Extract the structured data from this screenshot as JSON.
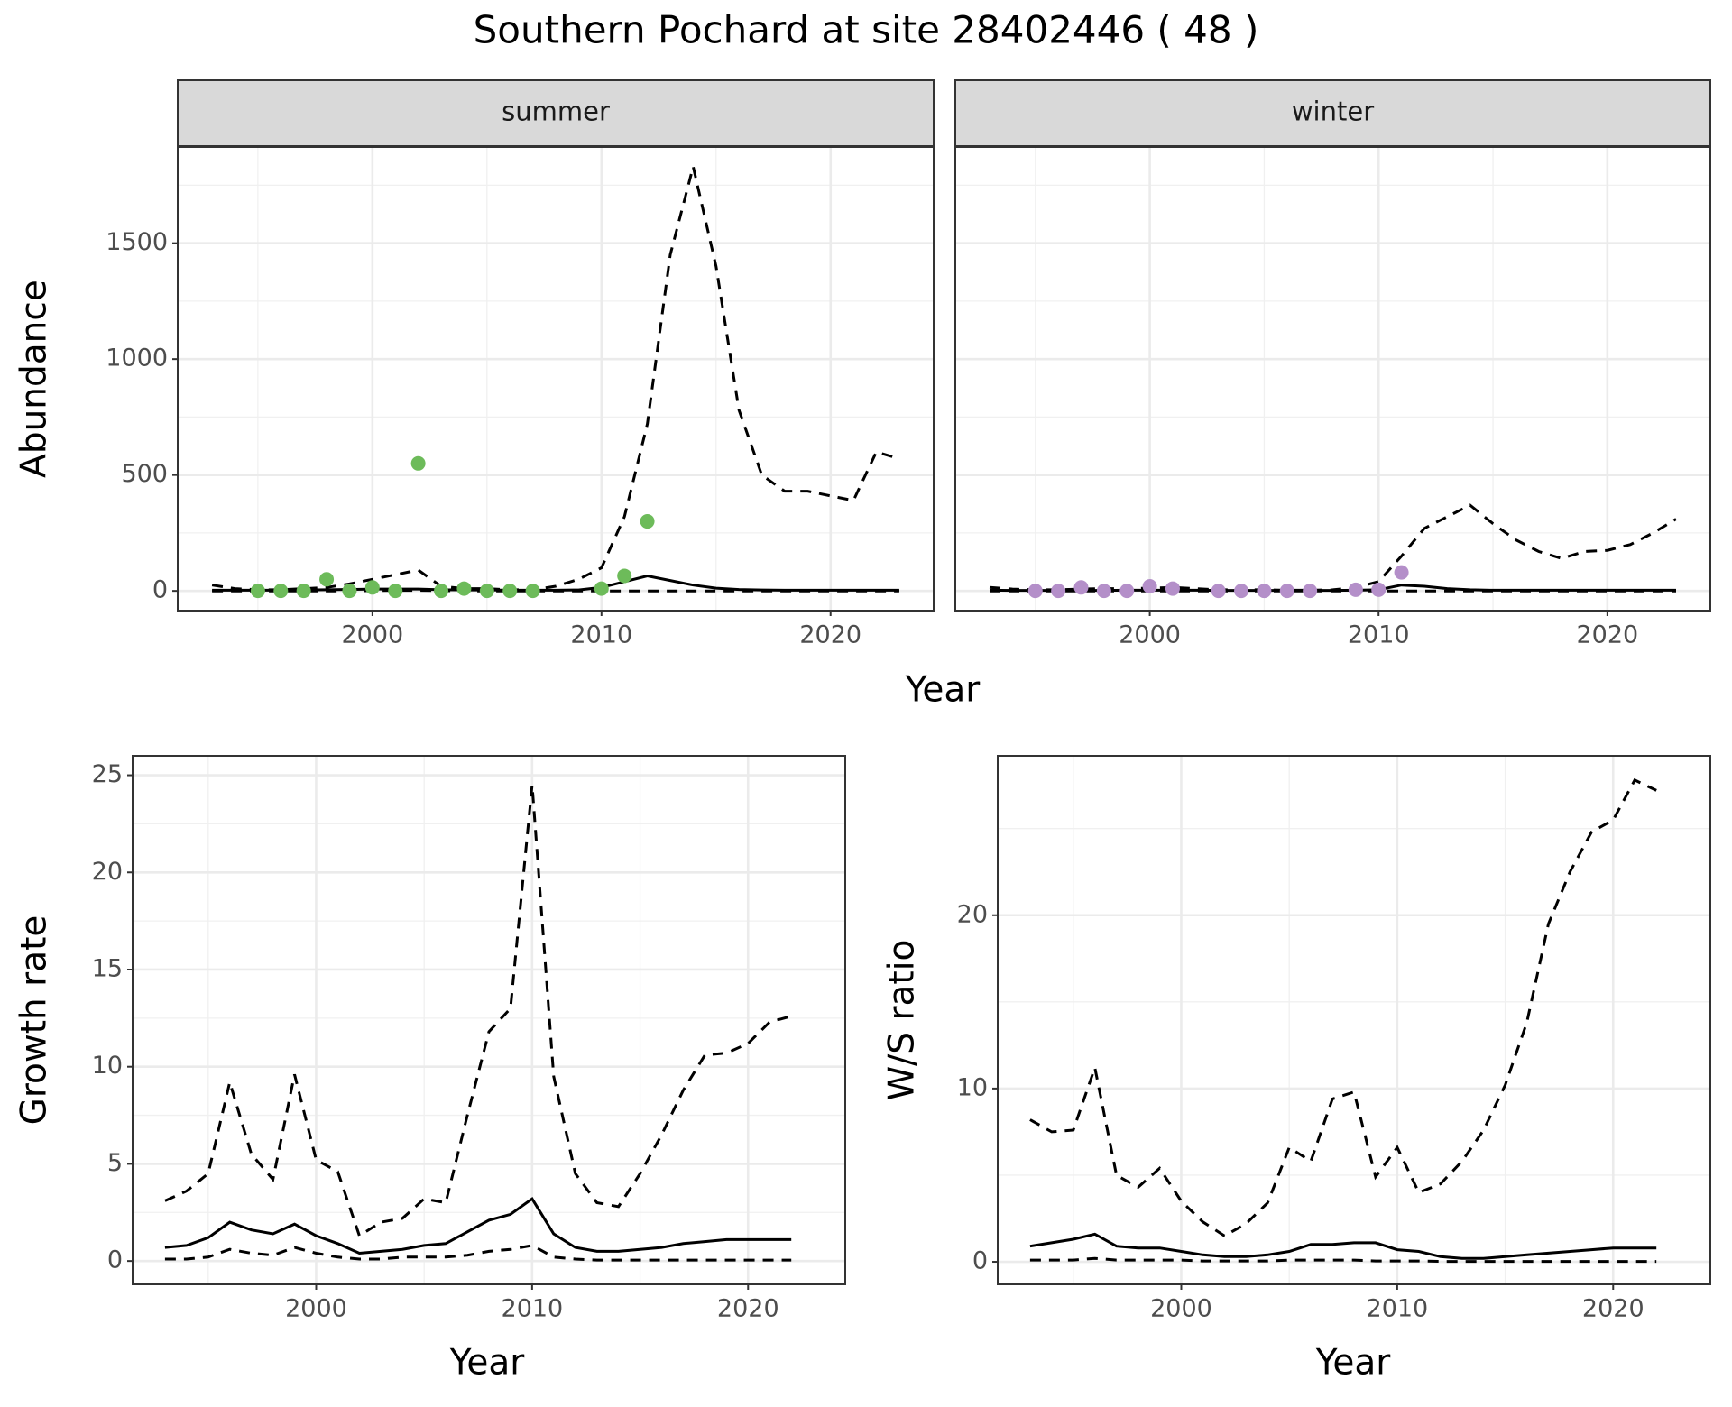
{
  "title": "Southern Pochard at site 28402446 ( 48 )",
  "chart_data": [
    {
      "type": "line",
      "strip": "summer",
      "ylabel": "Abundance",
      "xlabel": "Year",
      "x": [
        1993,
        1994,
        1995,
        1996,
        1997,
        1998,
        1999,
        2000,
        2001,
        2002,
        2003,
        2004,
        2005,
        2006,
        2007,
        2008,
        2009,
        2010,
        2011,
        2012,
        2013,
        2014,
        2015,
        2016,
        2017,
        2018,
        2019,
        2020,
        2021,
        2022,
        2023
      ],
      "xlim": [
        1991.5,
        2024.5
      ],
      "xticks": [
        2000,
        2010,
        2020
      ],
      "ylim": [
        -85,
        1915
      ],
      "yticks": [
        0,
        500,
        1000,
        1500
      ],
      "show_ytick_labels": true,
      "grid": true,
      "series": [
        {
          "color": "#000000",
          "dash": "dashed",
          "values": [
            25,
            10,
            5,
            5,
            10,
            15,
            30,
            50,
            70,
            90,
            20,
            10,
            10,
            5,
            5,
            20,
            50,
            100,
            320,
            720,
            1450,
            1830,
            1400,
            780,
            500,
            430,
            430,
            410,
            390,
            600,
            570
          ]
        },
        {
          "color": "#000000",
          "dash": "solid",
          "values": [
            3,
            3,
            3,
            3,
            4,
            5,
            6,
            8,
            8,
            8,
            5,
            4,
            4,
            3,
            3,
            3,
            4,
            15,
            40,
            65,
            45,
            25,
            12,
            6,
            4,
            3,
            3,
            3,
            3,
            3,
            3
          ]
        },
        {
          "color": "#000000",
          "dash": "dashed",
          "values": [
            0,
            0,
            0,
            0,
            0,
            0,
            0,
            1,
            2,
            2,
            1,
            0,
            0,
            0,
            0,
            0,
            0,
            0,
            0,
            0,
            0,
            0,
            0,
            0,
            0,
            0,
            0,
            0,
            0,
            0,
            0
          ]
        }
      ],
      "points": {
        "color": "#6dbb5a",
        "x": [
          1995,
          1996,
          1997,
          1998,
          1999,
          2000,
          2001,
          2002,
          2003,
          2004,
          2005,
          2006,
          2007,
          2010,
          2011,
          2012
        ],
        "values": [
          0,
          0,
          0,
          50,
          0,
          15,
          0,
          550,
          0,
          10,
          0,
          0,
          0,
          10,
          65,
          300
        ]
      }
    },
    {
      "type": "line",
      "strip": "winter",
      "x": [
        1993,
        1994,
        1995,
        1996,
        1997,
        1998,
        1999,
        2000,
        2001,
        2002,
        2003,
        2004,
        2005,
        2006,
        2007,
        2008,
        2009,
        2010,
        2011,
        2012,
        2013,
        2014,
        2015,
        2016,
        2017,
        2018,
        2019,
        2020,
        2021,
        2022,
        2023
      ],
      "xlim": [
        1991.5,
        2024.5
      ],
      "xticks": [
        2000,
        2010,
        2020
      ],
      "ylim": [
        -85,
        1915
      ],
      "yticks": [
        0,
        500,
        1000,
        1500
      ],
      "show_ytick_labels": false,
      "grid": true,
      "series": [
        {
          "color": "#000000",
          "dash": "dashed",
          "values": [
            15,
            8,
            5,
            5,
            8,
            10,
            10,
            12,
            15,
            10,
            5,
            5,
            5,
            3,
            3,
            5,
            15,
            40,
            150,
            270,
            320,
            370,
            290,
            220,
            170,
            140,
            170,
            175,
            200,
            250,
            310
          ]
        },
        {
          "color": "#000000",
          "dash": "solid",
          "values": [
            3,
            2,
            2,
            2,
            2,
            2,
            3,
            3,
            3,
            3,
            2,
            2,
            2,
            2,
            2,
            2,
            3,
            5,
            25,
            20,
            10,
            5,
            3,
            3,
            3,
            3,
            3,
            3,
            3,
            3,
            3
          ]
        },
        {
          "color": "#000000",
          "dash": "dashed",
          "values": [
            0,
            0,
            0,
            0,
            0,
            0,
            0,
            0,
            0,
            0,
            0,
            0,
            0,
            0,
            0,
            0,
            0,
            0,
            0,
            0,
            0,
            0,
            0,
            0,
            0,
            0,
            0,
            0,
            0,
            0,
            0
          ]
        }
      ],
      "points": {
        "color": "#b48fc9",
        "x": [
          1995,
          1996,
          1997,
          1998,
          1999,
          2000,
          2001,
          2003,
          2004,
          2005,
          2006,
          2007,
          2009,
          2010,
          2011
        ],
        "values": [
          0,
          0,
          15,
          0,
          0,
          20,
          10,
          0,
          0,
          0,
          0,
          0,
          5,
          5,
          80
        ]
      }
    },
    {
      "type": "line",
      "ylabel": "Growth rate",
      "xlabel": "Year",
      "x": [
        1993,
        1994,
        1995,
        1996,
        1997,
        1998,
        1999,
        2000,
        2001,
        2002,
        2003,
        2004,
        2005,
        2006,
        2007,
        2008,
        2009,
        2010,
        2011,
        2012,
        2013,
        2014,
        2015,
        2016,
        2017,
        2018,
        2019,
        2020,
        2021,
        2022
      ],
      "xlim": [
        1991.5,
        2024.5
      ],
      "xticks": [
        2000,
        2010,
        2020
      ],
      "ylim": [
        -1.2,
        26
      ],
      "yticks": [
        0,
        5,
        10,
        15,
        20,
        25
      ],
      "show_ytick_labels": true,
      "grid": true,
      "series": [
        {
          "color": "#000000",
          "dash": "dashed",
          "values": [
            3.1,
            3.6,
            4.5,
            9.2,
            5.5,
            4.2,
            9.6,
            5.2,
            4.6,
            1.3,
            2.0,
            2.2,
            3.2,
            3.0,
            7.5,
            11.8,
            13.0,
            24.5,
            9.5,
            4.5,
            3.0,
            2.8,
            4.5,
            6.5,
            8.8,
            10.6,
            10.7,
            11.2,
            12.3,
            12.6
          ]
        },
        {
          "color": "#000000",
          "dash": "solid",
          "values": [
            0.7,
            0.8,
            1.2,
            2.0,
            1.6,
            1.4,
            1.9,
            1.3,
            0.9,
            0.4,
            0.5,
            0.6,
            0.8,
            0.9,
            1.5,
            2.1,
            2.4,
            3.2,
            1.4,
            0.7,
            0.5,
            0.5,
            0.6,
            0.7,
            0.9,
            1.0,
            1.1,
            1.1,
            1.1,
            1.1
          ]
        },
        {
          "color": "#000000",
          "dash": "dashed",
          "values": [
            0.1,
            0.1,
            0.2,
            0.6,
            0.4,
            0.3,
            0.7,
            0.4,
            0.2,
            0.1,
            0.1,
            0.2,
            0.2,
            0.2,
            0.3,
            0.5,
            0.6,
            0.8,
            0.2,
            0.1,
            0.05,
            0.05,
            0.05,
            0.05,
            0.05,
            0.05,
            0.05,
            0.05,
            0.05,
            0.05
          ]
        }
      ]
    },
    {
      "type": "line",
      "ylabel": "W/S ratio",
      "xlabel": "Year",
      "x": [
        1993,
        1994,
        1995,
        1996,
        1997,
        1998,
        1999,
        2000,
        2001,
        2002,
        2003,
        2004,
        2005,
        2006,
        2007,
        2008,
        2009,
        2010,
        2011,
        2012,
        2013,
        2014,
        2015,
        2016,
        2017,
        2018,
        2019,
        2020,
        2021,
        2022
      ],
      "xlim": [
        1991.5,
        2024.5
      ],
      "xticks": [
        2000,
        2010,
        2020
      ],
      "ylim": [
        -1.3,
        29.2
      ],
      "yticks": [
        0,
        10,
        20
      ],
      "show_ytick_labels": true,
      "grid": true,
      "series": [
        {
          "color": "#000000",
          "dash": "dashed",
          "values": [
            8.2,
            7.5,
            7.6,
            11.2,
            5.0,
            4.3,
            5.4,
            3.5,
            2.3,
            1.5,
            2.2,
            3.4,
            6.6,
            5.8,
            9.4,
            9.8,
            4.9,
            6.6,
            4.0,
            4.5,
            5.8,
            7.6,
            10.2,
            13.8,
            19.5,
            22.5,
            24.8,
            25.5,
            27.8,
            27.2
          ]
        },
        {
          "color": "#000000",
          "dash": "solid",
          "values": [
            0.9,
            1.1,
            1.3,
            1.6,
            0.9,
            0.8,
            0.8,
            0.6,
            0.4,
            0.3,
            0.3,
            0.4,
            0.6,
            1.0,
            1.0,
            1.1,
            1.1,
            0.7,
            0.6,
            0.3,
            0.2,
            0.2,
            0.3,
            0.4,
            0.5,
            0.6,
            0.7,
            0.8,
            0.8,
            0.8
          ]
        },
        {
          "color": "#000000",
          "dash": "dashed",
          "values": [
            0.1,
            0.1,
            0.1,
            0.2,
            0.1,
            0.1,
            0.1,
            0.1,
            0.05,
            0.05,
            0.05,
            0.05,
            0.1,
            0.1,
            0.1,
            0.1,
            0.05,
            0.05,
            0.05,
            0.02,
            0.02,
            0.02,
            0.02,
            0.02,
            0.02,
            0.02,
            0.02,
            0.02,
            0.02,
            0.02
          ]
        }
      ]
    }
  ]
}
